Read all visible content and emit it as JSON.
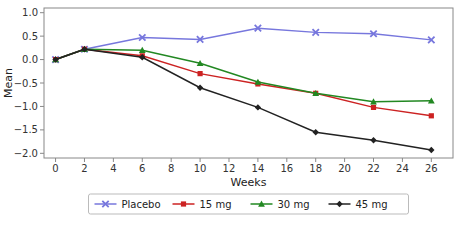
{
  "chart_data": {
    "type": "line",
    "xlabel": "Weeks",
    "ylabel": "Mean",
    "x": [
      0,
      2,
      6,
      10,
      14,
      18,
      22,
      26
    ],
    "series": [
      {
        "name": "Placebo",
        "color": "#7777dd",
        "marker": "x",
        "values": [
          0.0,
          0.22,
          0.47,
          0.43,
          0.67,
          0.58,
          0.55,
          0.42
        ]
      },
      {
        "name": "15 mg",
        "color": "#cc2222",
        "marker": "square",
        "values": [
          0.0,
          0.22,
          0.08,
          -0.3,
          -0.52,
          -0.72,
          -1.02,
          -1.2
        ]
      },
      {
        "name": "30 mg",
        "color": "#228822",
        "marker": "triangle",
        "values": [
          0.0,
          0.22,
          0.2,
          -0.08,
          -0.48,
          -0.72,
          -0.9,
          -0.88
        ]
      },
      {
        "name": "45 mg",
        "color": "#222222",
        "marker": "diamond",
        "values": [
          0.0,
          0.22,
          0.05,
          -0.6,
          -1.02,
          -1.55,
          -1.72,
          -1.93
        ]
      }
    ],
    "xlim": [
      -0.8,
      27.5
    ],
    "ylim": [
      -2.1,
      1.1
    ],
    "xticks": [
      0,
      2,
      4,
      6,
      8,
      10,
      12,
      14,
      16,
      18,
      20,
      22,
      24,
      26
    ],
    "yticks": [
      {
        "value": -2.0,
        "label": "−2.0"
      },
      {
        "value": -1.5,
        "label": "−1.5"
      },
      {
        "value": -1.0,
        "label": "−1.0"
      },
      {
        "value": -0.5,
        "label": "−0.5"
      },
      {
        "value": 0.0,
        "label": "0.0"
      },
      {
        "value": 0.5,
        "label": "0.5"
      },
      {
        "value": 1.0,
        "label": "1.0"
      }
    ],
    "grid": false,
    "legend": "bottom"
  }
}
